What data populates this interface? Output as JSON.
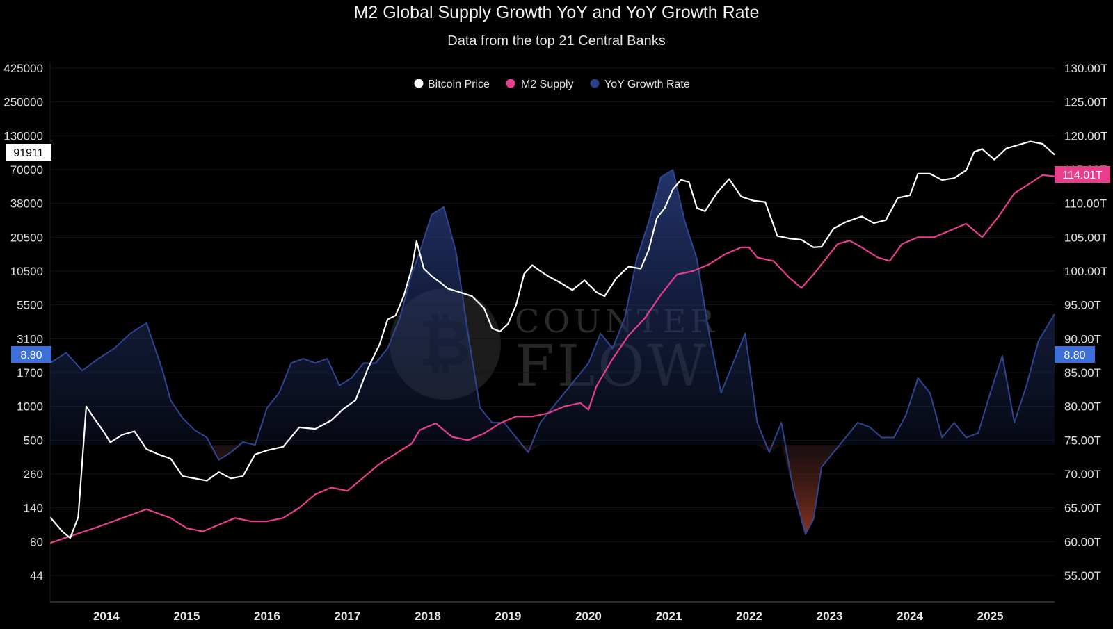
{
  "title": "M2 Global Supply Growth YoY and YoY Growth Rate",
  "subtitle": "Data from the top 21 Central Banks",
  "watermark": {
    "line1": "COUNTER",
    "line2": "FLOW",
    "icon": "bitcoin-coin-icon"
  },
  "colors": {
    "background": "#000000",
    "bitcoin": "#ffffff",
    "m2": "#e83e8c",
    "yoy": "#2b3f86",
    "yoy_negative": "#a8402a",
    "badge_blue": "#3d6fd9",
    "badge_pink": "#e83e8c"
  },
  "chart_data": {
    "type": "line",
    "title": "M2 Global Supply Growth YoY and YoY Growth Rate",
    "subtitle": "Data from the top 21 Central Banks",
    "legend": {
      "placement": "top-center",
      "entries": [
        "Bitcoin Price",
        "M2 Supply",
        "YoY Growth Rate"
      ]
    },
    "x_ticks": [
      "2014",
      "2015",
      "2016",
      "2017",
      "2018",
      "2019",
      "2020",
      "2021",
      "2022",
      "2023",
      "2024",
      "2025"
    ],
    "xlim": [
      2013.4,
      2025.9
    ],
    "left_axis": {
      "scale": "log",
      "ticks": [
        "425000",
        "250000",
        "130000",
        "70000",
        "38000",
        "20500",
        "10500",
        "5500",
        "3100",
        "1700",
        "1000",
        "500",
        "260",
        "140",
        "80",
        "44"
      ]
    },
    "right_axis": {
      "ticks": [
        "130.00T",
        "125.00T",
        "120.00T",
        "115.00T",
        "110.00T",
        "105.00T",
        "100.00T",
        "95.00T",
        "90.00T",
        "85.00T",
        "80.00T",
        "75.00T",
        "70.00T",
        "65.00T",
        "60.00T",
        "55.00T"
      ],
      "ylim": [
        50,
        130
      ]
    },
    "yoy_axis": {
      "ylim": [
        -7,
        18
      ]
    },
    "current_values": {
      "bitcoin": "91911",
      "m2": "114.01T",
      "yoy_left": "8.80",
      "yoy_right": "8.80"
    },
    "grid": false,
    "series": [
      {
        "name": "Bitcoin Price",
        "x": [
          2013.4,
          2013.55,
          2013.65,
          2013.75,
          2013.85,
          2013.95,
          2014.05,
          2014.15,
          2014.3,
          2014.45,
          2014.6,
          2014.75,
          2014.9,
          2015.05,
          2015.2,
          2015.35,
          2015.5,
          2015.65,
          2015.8,
          2015.95,
          2016.1,
          2016.3,
          2016.5,
          2016.7,
          2016.9,
          2017.05,
          2017.2,
          2017.35,
          2017.5,
          2017.6,
          2017.7,
          2017.8,
          2017.9,
          2017.96,
          2018.05,
          2018.15,
          2018.25,
          2018.35,
          2018.5,
          2018.65,
          2018.8,
          2018.9,
          2019.0,
          2019.1,
          2019.2,
          2019.3,
          2019.4,
          2019.5,
          2019.6,
          2019.75,
          2019.9,
          2020.05,
          2020.2,
          2020.3,
          2020.45,
          2020.6,
          2020.75,
          2020.85,
          2020.95,
          2021.05,
          2021.15,
          2021.25,
          2021.35,
          2021.45,
          2021.55,
          2021.7,
          2021.85,
          2022.0,
          2022.15,
          2022.3,
          2022.45,
          2022.6,
          2022.75,
          2022.9,
          2023.0,
          2023.15,
          2023.3,
          2023.5,
          2023.65,
          2023.8,
          2023.95,
          2024.1,
          2024.2,
          2024.35,
          2024.5,
          2024.65,
          2024.8,
          2024.9,
          2025.0,
          2025.15,
          2025.3,
          2025.45,
          2025.6,
          2025.75,
          2025.9
        ],
        "values": [
          120,
          95,
          85,
          120,
          1000,
          780,
          620,
          480,
          560,
          600,
          420,
          380,
          350,
          250,
          240,
          230,
          270,
          240,
          250,
          380,
          410,
          440,
          650,
          630,
          750,
          950,
          1100,
          1800,
          2800,
          4300,
          4600,
          6500,
          11000,
          19000,
          11000,
          9500,
          8500,
          7500,
          7000,
          6500,
          5200,
          3700,
          3500,
          4000,
          5500,
          10000,
          11800,
          10500,
          9500,
          8400,
          7300,
          8800,
          7000,
          6500,
          9200,
          11500,
          11000,
          16000,
          29000,
          35000,
          49000,
          58000,
          56000,
          35000,
          33000,
          46000,
          59000,
          43000,
          40000,
          39000,
          21000,
          20000,
          19500,
          16800,
          17000,
          24000,
          27000,
          30000,
          26500,
          28000,
          42000,
          44000,
          65000,
          65000,
          58000,
          60000,
          69000,
          97000,
          102000,
          84000,
          103000,
          110000,
          117000,
          112000,
          91911
        ]
      },
      {
        "name": "M2 Supply",
        "x": [
          2013.4,
          2013.7,
          2014.0,
          2014.3,
          2014.6,
          2014.9,
          2015.1,
          2015.3,
          2015.5,
          2015.7,
          2015.9,
          2016.1,
          2016.3,
          2016.5,
          2016.7,
          2016.9,
          2017.1,
          2017.3,
          2017.5,
          2017.7,
          2017.9,
          2018.0,
          2018.2,
          2018.4,
          2018.6,
          2018.8,
          2019.0,
          2019.2,
          2019.4,
          2019.6,
          2019.8,
          2020.0,
          2020.1,
          2020.2,
          2020.4,
          2020.6,
          2020.8,
          2021.0,
          2021.2,
          2021.4,
          2021.6,
          2021.8,
          2022.0,
          2022.1,
          2022.2,
          2022.4,
          2022.6,
          2022.75,
          2022.9,
          2023.0,
          2023.2,
          2023.35,
          2023.5,
          2023.7,
          2023.85,
          2024.0,
          2024.2,
          2024.4,
          2024.6,
          2024.8,
          2024.9,
          2025.0,
          2025.2,
          2025.4,
          2025.6,
          2025.75,
          2025.9
        ],
        "values": [
          59.8,
          61,
          62.2,
          63.5,
          64.8,
          63.5,
          62,
          61.5,
          62.5,
          63.5,
          63,
          63,
          63.5,
          65,
          67,
          68,
          67.5,
          69.5,
          71.5,
          73,
          74.5,
          76.5,
          77.5,
          75.5,
          75,
          76,
          77.5,
          78.5,
          78.5,
          79,
          80,
          80.5,
          79.5,
          83,
          87,
          90.5,
          93,
          96.5,
          99.5,
          100,
          101,
          102.5,
          103.5,
          103.5,
          102,
          101.5,
          99,
          97.5,
          99.5,
          101,
          104,
          104.5,
          103.5,
          102,
          101.5,
          104,
          105,
          105,
          106,
          107,
          106,
          105,
          108,
          111.5,
          113,
          114.2,
          114.01
        ]
      },
      {
        "name": "YoY Growth Rate",
        "x": [
          2013.4,
          2013.6,
          2013.8,
          2014.0,
          2014.2,
          2014.4,
          2014.6,
          2014.8,
          2014.9,
          2015.05,
          2015.2,
          2015.35,
          2015.5,
          2015.65,
          2015.8,
          2015.95,
          2016.1,
          2016.25,
          2016.4,
          2016.55,
          2016.7,
          2016.85,
          2017.0,
          2017.15,
          2017.3,
          2017.45,
          2017.6,
          2017.75,
          2017.9,
          2018.0,
          2018.15,
          2018.3,
          2018.45,
          2018.6,
          2018.75,
          2018.9,
          2019.05,
          2019.2,
          2019.35,
          2019.5,
          2019.65,
          2019.8,
          2019.95,
          2020.1,
          2020.25,
          2020.4,
          2020.55,
          2020.7,
          2020.85,
          2021.0,
          2021.15,
          2021.3,
          2021.45,
          2021.6,
          2021.75,
          2021.9,
          2022.05,
          2022.2,
          2022.35,
          2022.5,
          2022.65,
          2022.8,
          2022.9,
          2023.0,
          2023.15,
          2023.3,
          2023.45,
          2023.6,
          2023.75,
          2023.9,
          2024.05,
          2024.2,
          2024.35,
          2024.5,
          2024.65,
          2024.8,
          2024.95,
          2025.1,
          2025.25,
          2025.4,
          2025.55,
          2025.7,
          2025.9
        ],
        "values": [
          5.5,
          6.2,
          5,
          5.8,
          6.5,
          7.5,
          8.2,
          5,
          3,
          1.8,
          1,
          0.5,
          -1,
          -0.5,
          0.2,
          0,
          2.5,
          3.5,
          5.5,
          5.8,
          5.5,
          5.8,
          4,
          4.5,
          5.5,
          5.5,
          6.5,
          8.5,
          11.5,
          13,
          15.5,
          16,
          13,
          7.5,
          2.5,
          1.5,
          1.5,
          0.5,
          -0.5,
          1.5,
          2.5,
          3.5,
          4.5,
          5.5,
          7.5,
          6.5,
          8.5,
          12.5,
          15,
          18,
          18.5,
          15,
          12.5,
          7.5,
          3.5,
          5.5,
          7.5,
          1.5,
          -0.5,
          1.5,
          -3,
          -6,
          -5,
          -1.5,
          -0.5,
          0.5,
          1.5,
          1.2,
          0.5,
          0.5,
          2,
          4.5,
          3.5,
          0.5,
          1.5,
          0.5,
          0.8,
          3.5,
          6,
          1.5,
          4,
          7,
          8.8
        ]
      }
    ]
  }
}
